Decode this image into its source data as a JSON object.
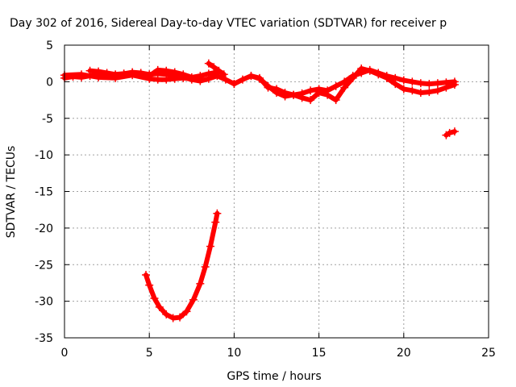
{
  "chart_data": {
    "type": "scatter",
    "title": "Day 302 of 2016, Sidereal Day-to-day VTEC variation (SDTVAR) for receiver p",
    "xlabel": "GPS time / hours",
    "ylabel": "SDTVAR / TECUs",
    "xlim": [
      0,
      25
    ],
    "ylim": [
      -35,
      5
    ],
    "xticks": [
      0,
      5,
      10,
      15,
      20,
      25
    ],
    "yticks": [
      5,
      0,
      -5,
      -10,
      -15,
      -20,
      -25,
      -30,
      -35
    ],
    "grid": true,
    "marker_color": "#ff0000",
    "series": [
      {
        "x": [
          0.0,
          0.5,
          1.0,
          1.5,
          2.0,
          2.5,
          3.0,
          3.5,
          4.0,
          4.5,
          5.0,
          5.5,
          6.0,
          6.5,
          7.0,
          7.5,
          8.0,
          8.5,
          9.0,
          9.5,
          10.0
        ],
        "y": [
          0.5,
          0.7,
          0.6,
          0.8,
          0.9,
          1.0,
          0.9,
          1.1,
          1.2,
          1.2,
          1.0,
          1.1,
          1.0,
          0.8,
          0.6,
          0.3,
          0.1,
          0.4,
          0.8,
          0.3,
          -0.3
        ]
      },
      {
        "x": [
          1.5,
          2.0,
          2.5,
          3.0,
          3.5,
          4.0,
          4.5,
          5.0,
          5.5,
          6.0,
          6.5,
          7.0,
          7.5,
          8.0,
          8.5,
          9.0
        ],
        "y": [
          1.5,
          1.4,
          1.2,
          1.0,
          1.1,
          1.3,
          1.2,
          0.8,
          1.6,
          1.5,
          1.3,
          1.0,
          0.6,
          0.8,
          1.1,
          1.3
        ]
      },
      {
        "x": [
          0.0,
          1.0,
          2.0,
          3.0,
          4.0,
          5.0,
          5.5,
          6.0,
          6.5,
          7.0,
          7.5,
          8.0
        ],
        "y": [
          0.9,
          1.0,
          0.6,
          0.5,
          0.9,
          0.4,
          0.3,
          0.3,
          0.4,
          0.5,
          0.4,
          0.5
        ]
      },
      {
        "x": [
          8.5,
          8.8,
          9.1,
          9.4
        ],
        "y": [
          2.5,
          2.0,
          1.5,
          1.0
        ]
      },
      {
        "x": [
          10.0,
          10.5,
          11.0,
          11.5,
          12.0,
          12.5,
          13.0,
          13.5,
          14.0,
          14.5,
          15.0,
          15.5,
          16.0,
          16.5,
          17.0,
          17.5,
          18.0,
          18.5,
          19.0,
          19.5,
          20.0,
          20.5,
          21.0,
          21.5,
          22.0,
          22.5,
          23.0
        ],
        "y": [
          -0.3,
          0.3,
          0.8,
          0.5,
          -0.8,
          -1.0,
          -1.5,
          -1.8,
          -1.6,
          -1.2,
          -1.0,
          -1.2,
          -0.6,
          0.0,
          0.8,
          1.2,
          1.6,
          1.2,
          0.8,
          0.5,
          0.2,
          0.0,
          -0.2,
          -0.3,
          -0.2,
          -0.1,
          0.0
        ]
      },
      {
        "x": [
          11.0,
          11.5,
          12.0,
          12.5,
          13.0,
          13.5,
          14.0,
          14.5,
          15.0,
          15.5,
          16.0,
          16.5,
          17.0,
          17.5,
          18.0,
          18.5,
          19.0,
          19.5,
          20.0,
          20.5,
          21.0,
          21.5,
          22.0,
          22.5,
          23.0
        ],
        "y": [
          0.8,
          0.4,
          -0.6,
          -1.5,
          -2.0,
          -1.8,
          -2.2,
          -2.5,
          -1.5,
          -1.8,
          -2.5,
          -0.8,
          0.5,
          1.8,
          1.5,
          1.0,
          0.5,
          -0.3,
          -1.0,
          -1.2,
          -1.5,
          -1.4,
          -1.2,
          -0.8,
          -0.4
        ]
      },
      {
        "x": [
          22.5,
          22.7,
          23.0
        ],
        "y": [
          -7.3,
          -7.0,
          -6.8
        ]
      },
      {
        "x": [
          4.8,
          5.0,
          5.3,
          5.6,
          6.0,
          6.4,
          6.8,
          7.2,
          7.6,
          8.0,
          8.3,
          8.6,
          8.9,
          9.0
        ],
        "y": [
          -26.4,
          -27.8,
          -29.6,
          -30.8,
          -31.8,
          -32.3,
          -32.2,
          -31.4,
          -29.8,
          -27.6,
          -25.3,
          -22.5,
          -19.2,
          -18.0
        ]
      }
    ]
  }
}
